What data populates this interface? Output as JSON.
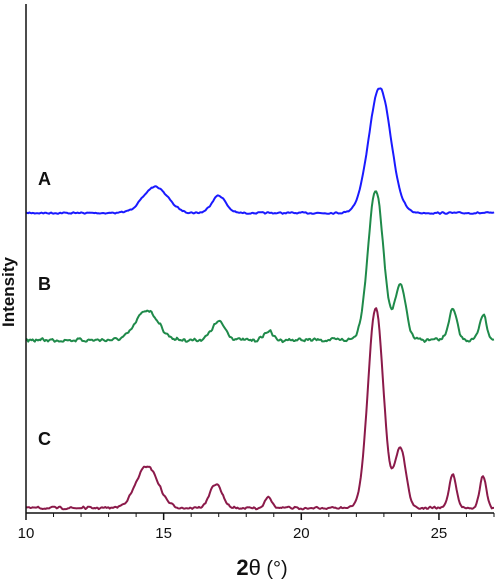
{
  "chart_data": {
    "type": "line",
    "xlabel_main": "2",
    "xlabel_theta": "θ",
    "xlabel_unit": " (°)",
    "ylabel": "Intensity",
    "xlim": [
      10,
      27
    ],
    "x_ticks": [
      10,
      15,
      20,
      25
    ],
    "x_tick_labels": [
      "10",
      "15",
      "20",
      "25"
    ],
    "colors": {
      "A": "#1a1aff",
      "B": "#1f8a4a",
      "C": "#8b1a4a"
    },
    "series": [
      {
        "name": "A",
        "peaks": [
          [
            14.7,
            0.21,
            0.45
          ],
          [
            17.0,
            0.14,
            0.25
          ],
          [
            22.85,
            1.0,
            0.4
          ]
        ],
        "baseline": 0.0,
        "amplitude": 125,
        "noise": 2.0
      },
      {
        "name": "B",
        "peaks": [
          [
            14.4,
            0.2,
            0.4
          ],
          [
            17.0,
            0.12,
            0.25
          ],
          [
            18.8,
            0.06,
            0.15
          ],
          [
            22.7,
            1.0,
            0.28
          ],
          [
            23.6,
            0.36,
            0.2
          ],
          [
            25.5,
            0.2,
            0.15
          ],
          [
            26.6,
            0.17,
            0.13
          ]
        ],
        "baseline": 0.0,
        "amplitude": 150,
        "noise": 4.5
      },
      {
        "name": "C",
        "peaks": [
          [
            14.4,
            0.21,
            0.4
          ],
          [
            16.9,
            0.12,
            0.22
          ],
          [
            18.8,
            0.06,
            0.12
          ],
          [
            22.7,
            1.0,
            0.28
          ],
          [
            23.6,
            0.3,
            0.2
          ],
          [
            25.5,
            0.17,
            0.13
          ],
          [
            26.6,
            0.16,
            0.12
          ]
        ],
        "baseline": 0.0,
        "amplitude": 200,
        "noise": 3.0
      }
    ]
  }
}
